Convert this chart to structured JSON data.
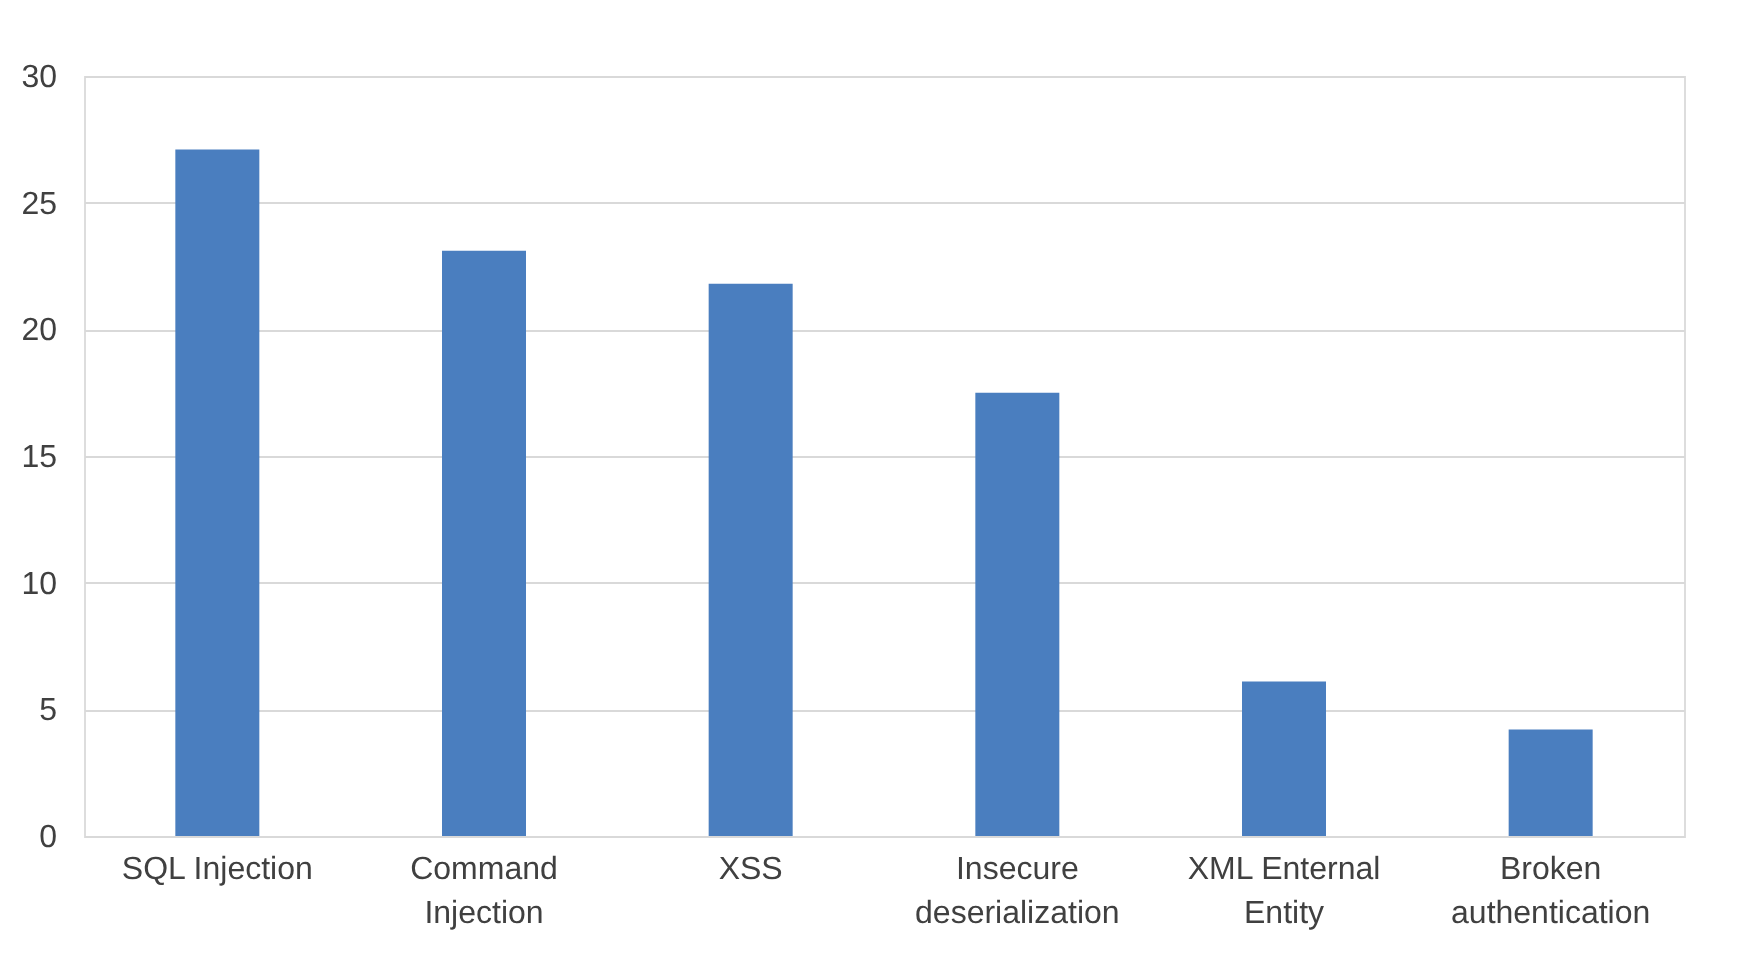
{
  "chart_data": {
    "type": "bar",
    "categories": [
      "SQL Injection",
      "Command Injection",
      "XSS",
      "Insecure deserialization",
      "XML Enternal Entity",
      "Broken authentication"
    ],
    "values": [
      27.1,
      23.1,
      21.8,
      17.5,
      6.1,
      4.2
    ],
    "color": "#4a7ebf",
    "ylim": [
      0,
      30
    ],
    "yticks": [
      0,
      5,
      10,
      15,
      20,
      25,
      30
    ],
    "grid": "y"
  }
}
